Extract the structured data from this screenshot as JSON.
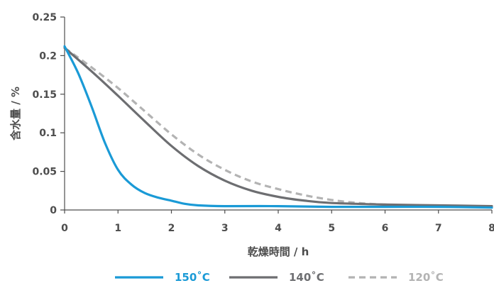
{
  "chart_data": {
    "type": "line",
    "xlabel": "乾燥時間 / h",
    "ylabel": "含水量 / %",
    "xlim": [
      0,
      8
    ],
    "ylim": [
      0,
      0.25
    ],
    "x_ticks": [
      "0",
      "1",
      "2",
      "3",
      "4",
      "5",
      "6",
      "7",
      "8"
    ],
    "y_ticks": [
      "0",
      "0.05",
      "0.1",
      "0.15",
      "0.2",
      "0.25"
    ],
    "grid": false,
    "legend_position": "bottom",
    "series": [
      {
        "name": "150˚C",
        "color": "#1a9ad6",
        "style": "solid",
        "x": [
          0,
          0.25,
          0.5,
          0.75,
          1.0,
          1.25,
          1.5,
          1.75,
          2.0,
          2.25,
          2.5,
          3.0,
          4.0,
          5.0,
          6.0,
          7.0,
          8.0
        ],
        "y": [
          0.212,
          0.178,
          0.135,
          0.088,
          0.052,
          0.033,
          0.022,
          0.016,
          0.012,
          0.008,
          0.006,
          0.005,
          0.005,
          0.004,
          0.004,
          0.004,
          0.003
        ]
      },
      {
        "name": "140˚C",
        "color": "#6d6e71",
        "style": "solid",
        "x": [
          0,
          0.5,
          1.0,
          1.5,
          2.0,
          2.5,
          3.0,
          3.5,
          4.0,
          4.5,
          5.0,
          6.0,
          7.0,
          8.0
        ],
        "y": [
          0.21,
          0.18,
          0.148,
          0.115,
          0.083,
          0.057,
          0.038,
          0.025,
          0.017,
          0.012,
          0.009,
          0.007,
          0.006,
          0.005
        ]
      },
      {
        "name": "120˚C",
        "color": "#b3b3b3",
        "style": "dashed",
        "x": [
          0,
          0.5,
          1.0,
          1.5,
          2.0,
          2.5,
          3.0,
          3.5,
          4.0,
          4.5,
          5.0,
          5.5,
          6.0,
          7.0,
          8.0
        ],
        "y": [
          0.21,
          0.185,
          0.158,
          0.128,
          0.098,
          0.072,
          0.052,
          0.037,
          0.027,
          0.019,
          0.013,
          0.009,
          0.007,
          0.005,
          0.004
        ]
      }
    ]
  }
}
